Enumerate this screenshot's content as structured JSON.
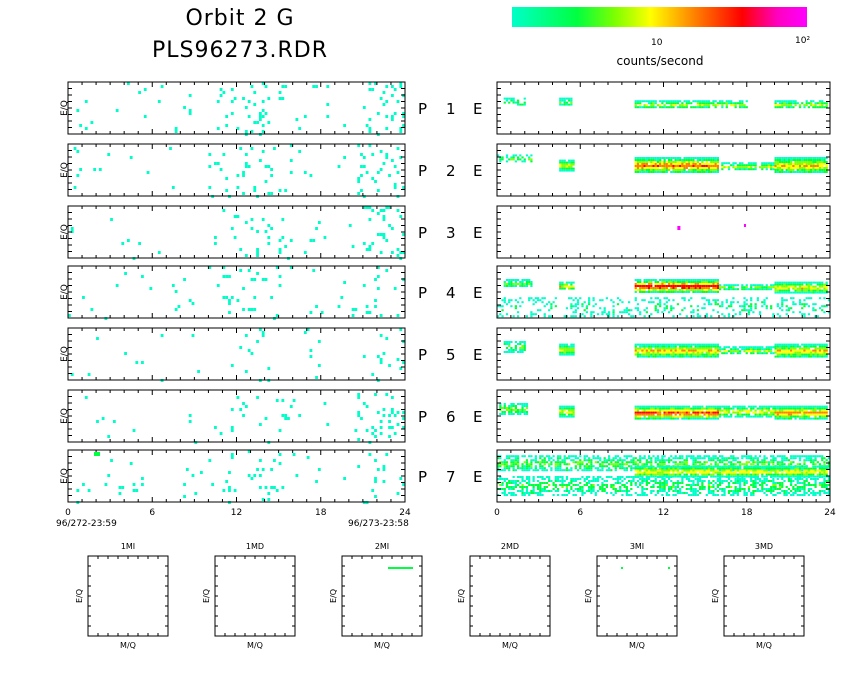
{
  "header": {
    "title_line1": "Orbit 2 G",
    "title_line2": "PLS96273.RDR"
  },
  "colorbar": {
    "tick_10": "10",
    "tick_100": "10²",
    "label": "counts/second",
    "colors": [
      "#00ffc8",
      "#00ff40",
      "#7fff00",
      "#ffff00",
      "#ff8000",
      "#ff0000",
      "#ff00ff"
    ]
  },
  "chart_data": {
    "type": "heatmap",
    "ylabel": "E/Q",
    "rows": [
      {
        "p_label": "P",
        "p_num": "1",
        "e_label": "E"
      },
      {
        "p_label": "P",
        "p_num": "2",
        "e_label": "E"
      },
      {
        "p_label": "P",
        "p_num": "3",
        "e_label": "E"
      },
      {
        "p_label": "P",
        "p_num": "4",
        "e_label": "E"
      },
      {
        "p_label": "P",
        "p_num": "5",
        "e_label": "E"
      },
      {
        "p_label": "P",
        "p_num": "6",
        "e_label": "E"
      },
      {
        "p_label": "P",
        "p_num": "7",
        "e_label": "E"
      }
    ],
    "x_ticks": [
      "0",
      "6",
      "12",
      "18",
      "24"
    ],
    "xlim": [
      0,
      24
    ],
    "time_start": "96/272-23:59",
    "time_end": "96/273-23:58",
    "small_panels": [
      {
        "title": "1MI",
        "xlabel": "M/Q",
        "ylabel": "E/Q"
      },
      {
        "title": "1MD",
        "xlabel": "M/Q",
        "ylabel": "E/Q"
      },
      {
        "title": "2MI",
        "xlabel": "M/Q",
        "ylabel": "E/Q"
      },
      {
        "title": "2MD",
        "xlabel": "M/Q",
        "ylabel": "E/Q"
      },
      {
        "title": "3MI",
        "xlabel": "M/Q",
        "ylabel": "E/Q"
      },
      {
        "title": "3MD",
        "xlabel": "M/Q",
        "ylabel": "E/Q"
      }
    ]
  }
}
